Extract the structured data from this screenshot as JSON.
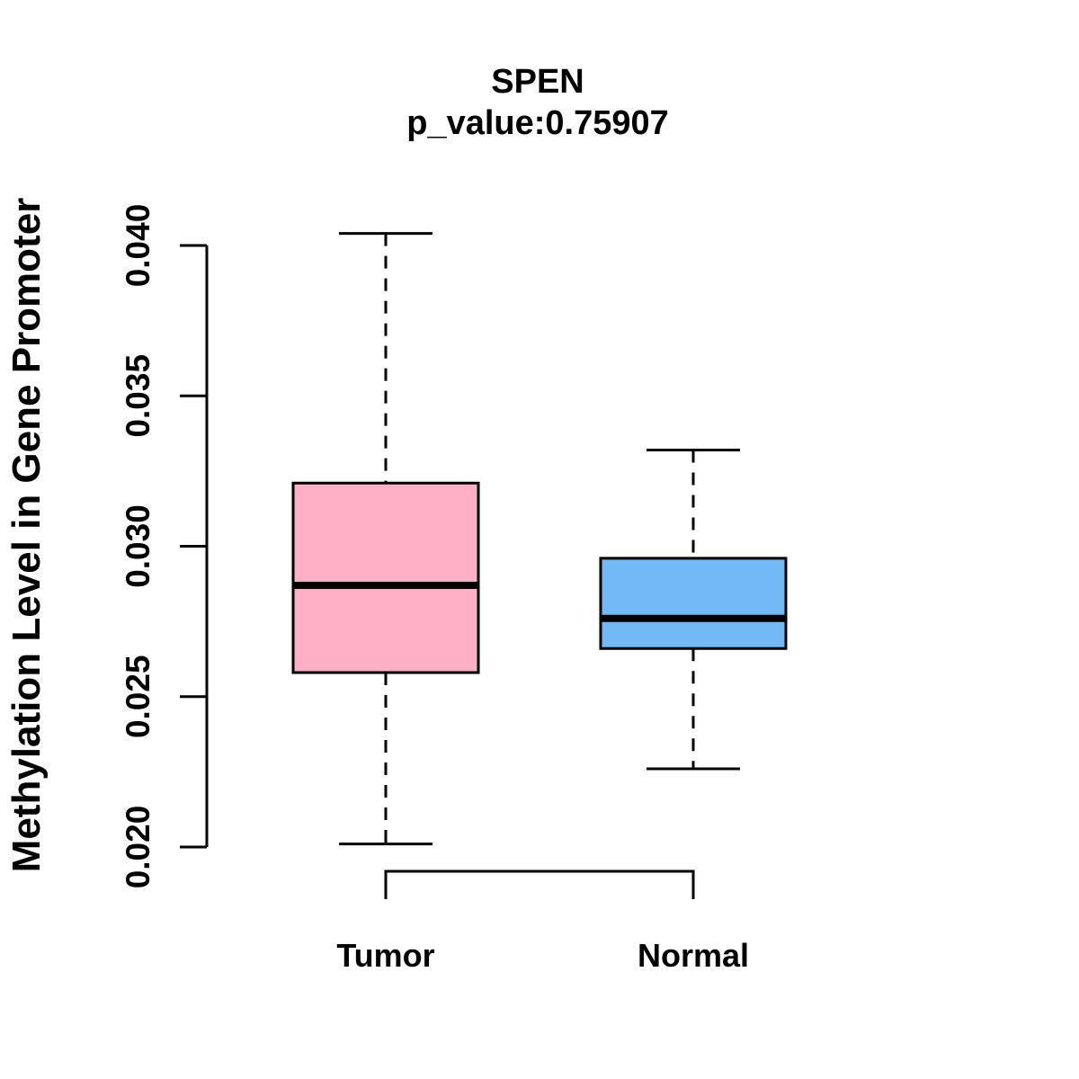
{
  "figure": {
    "title": "SPEN",
    "subtitle": "p_value:0.75907",
    "ylabel": "Methylation Level in Gene Promoter"
  },
  "chart_data": {
    "type": "boxplot",
    "title": "SPEN",
    "subtitle": "p_value:0.75907",
    "xlabel": "",
    "ylabel": "Methylation Level in Gene Promoter",
    "ylim": [
      0.02,
      0.04
    ],
    "yticks": [
      "0.020",
      "0.025",
      "0.030",
      "0.035",
      "0.040"
    ],
    "grid": false,
    "legend": "none",
    "categories": [
      "Tumor",
      "Normal"
    ],
    "groups": [
      {
        "label": "Tumor",
        "color": "#FFB0C4",
        "whisker_low": 0.0201,
        "q1": 0.0258,
        "median": 0.0287,
        "q3": 0.0321,
        "whisker_high": 0.0404
      },
      {
        "label": "Normal",
        "color": "#73B9F5",
        "whisker_low": 0.0226,
        "q1": 0.0266,
        "median": 0.0276,
        "q3": 0.0296,
        "whisker_high": 0.0332
      }
    ],
    "line_color": "#000000"
  }
}
